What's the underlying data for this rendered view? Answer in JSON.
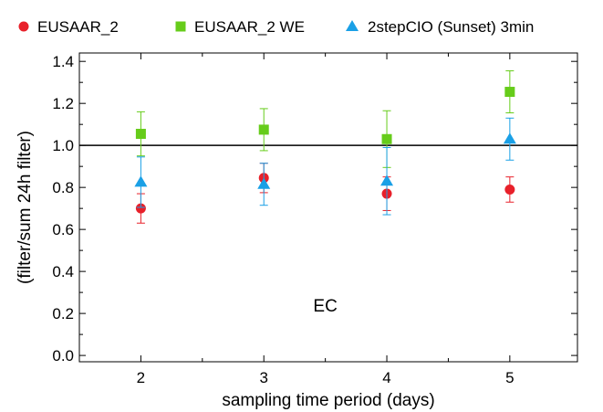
{
  "chart_data": {
    "type": "scatter",
    "xlabel": "sampling time period (days)",
    "ylabel": "(filter/sum 24h filter)",
    "xlim": [
      1.5,
      5.55
    ],
    "ylim": [
      -0.03,
      1.44
    ],
    "x_ticks": [
      2,
      3,
      4,
      5
    ],
    "y_ticks": [
      0.0,
      0.2,
      0.4,
      0.6,
      0.8,
      1.0,
      1.2,
      1.4
    ],
    "y_tick_labels": [
      "0.0",
      "0.2",
      "0.4",
      "0.6",
      "0.8",
      "1.0",
      "1.2",
      "1.4"
    ],
    "reference_line": 1.0,
    "annotation": {
      "text": "EC",
      "x": 3.5,
      "y": 0.24
    },
    "legend_position": "top",
    "grid": false,
    "series": [
      {
        "name": "EUSAAR_2",
        "marker": "circle",
        "color": "#e8202a",
        "x": [
          2,
          3,
          4,
          5
        ],
        "y": [
          0.7,
          0.845,
          0.77,
          0.79
        ],
        "err_low": [
          0.07,
          0.07,
          0.08,
          0.06
        ],
        "err_high": [
          0.07,
          0.07,
          0.08,
          0.06
        ]
      },
      {
        "name": "EUSAAR_2 WE",
        "marker": "square",
        "color": "#66cc1a",
        "x": [
          2,
          3,
          4,
          5
        ],
        "y": [
          1.055,
          1.075,
          1.03,
          1.255
        ],
        "err_low": [
          0.105,
          0.1,
          0.135,
          0.1
        ],
        "err_high": [
          0.105,
          0.1,
          0.135,
          0.1
        ]
      },
      {
        "name": "2stepCIO (Sunset) 3min",
        "marker": "triangle",
        "color": "#1aa0e6",
        "x": [
          2,
          3,
          4,
          5
        ],
        "y": [
          0.825,
          0.815,
          0.83,
          1.03
        ],
        "err_low": [
          0.12,
          0.1,
          0.16,
          0.1
        ],
        "err_high": [
          0.12,
          0.1,
          0.16,
          0.1
        ]
      }
    ]
  }
}
